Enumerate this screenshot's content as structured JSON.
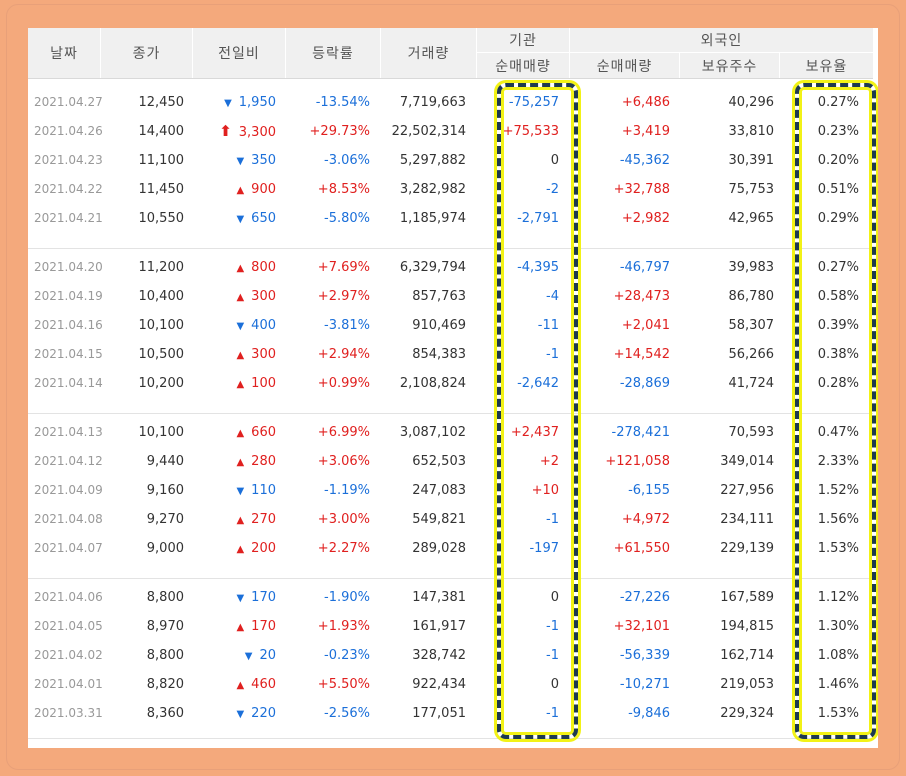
{
  "columns": {
    "date": "날짜",
    "close": "종가",
    "change": "전일비",
    "rate": "등락률",
    "volume": "거래량",
    "institution": "기관",
    "foreign": "외국인",
    "inst_net": "순매매량",
    "foreign_net": "순매매량",
    "foreign_holding": "보유주수",
    "foreign_ratio": "보유율"
  },
  "groups": [
    {
      "rows": [
        {
          "date": "2021.04.27",
          "close": "12,450",
          "dir": "down",
          "change": "1,950",
          "rate": "-13.54%",
          "volume": "7,719,663",
          "inst": "-75,257",
          "foreign_net": "+6,486",
          "holding": "40,296",
          "ratio": "0.27%"
        },
        {
          "date": "2021.04.26",
          "close": "14,400",
          "dir": "limit-up",
          "change": "3,300",
          "rate": "+29.73%",
          "volume": "22,502,314",
          "inst": "+75,533",
          "foreign_net": "+3,419",
          "holding": "33,810",
          "ratio": "0.23%"
        },
        {
          "date": "2021.04.23",
          "close": "11,100",
          "dir": "down",
          "change": "350",
          "rate": "-3.06%",
          "volume": "5,297,882",
          "inst": "0",
          "foreign_net": "-45,362",
          "holding": "30,391",
          "ratio": "0.20%"
        },
        {
          "date": "2021.04.22",
          "close": "11,450",
          "dir": "up",
          "change": "900",
          "rate": "+8.53%",
          "volume": "3,282,982",
          "inst": "-2",
          "foreign_net": "+32,788",
          "holding": "75,753",
          "ratio": "0.51%"
        },
        {
          "date": "2021.04.21",
          "close": "10,550",
          "dir": "down",
          "change": "650",
          "rate": "-5.80%",
          "volume": "1,185,974",
          "inst": "-2,791",
          "foreign_net": "+2,982",
          "holding": "42,965",
          "ratio": "0.29%"
        }
      ]
    },
    {
      "rows": [
        {
          "date": "2021.04.20",
          "close": "11,200",
          "dir": "up",
          "change": "800",
          "rate": "+7.69%",
          "volume": "6,329,794",
          "inst": "-4,395",
          "foreign_net": "-46,797",
          "holding": "39,983",
          "ratio": "0.27%"
        },
        {
          "date": "2021.04.19",
          "close": "10,400",
          "dir": "up",
          "change": "300",
          "rate": "+2.97%",
          "volume": "857,763",
          "inst": "-4",
          "foreign_net": "+28,473",
          "holding": "86,780",
          "ratio": "0.58%"
        },
        {
          "date": "2021.04.16",
          "close": "10,100",
          "dir": "down",
          "change": "400",
          "rate": "-3.81%",
          "volume": "910,469",
          "inst": "-11",
          "foreign_net": "+2,041",
          "holding": "58,307",
          "ratio": "0.39%"
        },
        {
          "date": "2021.04.15",
          "close": "10,500",
          "dir": "up",
          "change": "300",
          "rate": "+2.94%",
          "volume": "854,383",
          "inst": "-1",
          "foreign_net": "+14,542",
          "holding": "56,266",
          "ratio": "0.38%"
        },
        {
          "date": "2021.04.14",
          "close": "10,200",
          "dir": "up",
          "change": "100",
          "rate": "+0.99%",
          "volume": "2,108,824",
          "inst": "-2,642",
          "foreign_net": "-28,869",
          "holding": "41,724",
          "ratio": "0.28%"
        }
      ]
    },
    {
      "rows": [
        {
          "date": "2021.04.13",
          "close": "10,100",
          "dir": "up",
          "change": "660",
          "rate": "+6.99%",
          "volume": "3,087,102",
          "inst": "+2,437",
          "foreign_net": "-278,421",
          "holding": "70,593",
          "ratio": "0.47%"
        },
        {
          "date": "2021.04.12",
          "close": "9,440",
          "dir": "up",
          "change": "280",
          "rate": "+3.06%",
          "volume": "652,503",
          "inst": "+2",
          "foreign_net": "+121,058",
          "holding": "349,014",
          "ratio": "2.33%"
        },
        {
          "date": "2021.04.09",
          "close": "9,160",
          "dir": "down",
          "change": "110",
          "rate": "-1.19%",
          "volume": "247,083",
          "inst": "+10",
          "foreign_net": "-6,155",
          "holding": "227,956",
          "ratio": "1.52%"
        },
        {
          "date": "2021.04.08",
          "close": "9,270",
          "dir": "up",
          "change": "270",
          "rate": "+3.00%",
          "volume": "549,821",
          "inst": "-1",
          "foreign_net": "+4,972",
          "holding": "234,111",
          "ratio": "1.56%"
        },
        {
          "date": "2021.04.07",
          "close": "9,000",
          "dir": "up",
          "change": "200",
          "rate": "+2.27%",
          "volume": "289,028",
          "inst": "-197",
          "foreign_net": "+61,550",
          "holding": "229,139",
          "ratio": "1.53%"
        }
      ]
    },
    {
      "rows": [
        {
          "date": "2021.04.06",
          "close": "8,800",
          "dir": "down",
          "change": "170",
          "rate": "-1.90%",
          "volume": "147,381",
          "inst": "0",
          "foreign_net": "-27,226",
          "holding": "167,589",
          "ratio": "1.12%"
        },
        {
          "date": "2021.04.05",
          "close": "8,970",
          "dir": "up",
          "change": "170",
          "rate": "+1.93%",
          "volume": "161,917",
          "inst": "-1",
          "foreign_net": "+32,101",
          "holding": "194,815",
          "ratio": "1.30%"
        },
        {
          "date": "2021.04.02",
          "close": "8,800",
          "dir": "down",
          "change": "20",
          "rate": "-0.23%",
          "volume": "328,742",
          "inst": "-1",
          "foreign_net": "-56,339",
          "holding": "162,714",
          "ratio": "1.08%"
        },
        {
          "date": "2021.04.01",
          "close": "8,820",
          "dir": "up",
          "change": "460",
          "rate": "+5.50%",
          "volume": "922,434",
          "inst": "0",
          "foreign_net": "-10,271",
          "holding": "219,053",
          "ratio": "1.46%"
        },
        {
          "date": "2021.03.31",
          "close": "8,360",
          "dir": "down",
          "change": "220",
          "rate": "-2.56%",
          "volume": "177,051",
          "inst": "-1",
          "foreign_net": "-9,846",
          "holding": "229,324",
          "ratio": "1.53%"
        }
      ]
    }
  ],
  "colors": {
    "up": "#e0201f",
    "down": "#1b6fd9",
    "highlight_border": "#1e3a4f",
    "highlight_glow": "#f2f216",
    "frame": "#f4a97c"
  },
  "icons": {
    "up": "triangle-up-icon",
    "down": "triangle-down-icon",
    "limit-up": "limit-up-arrow-icon"
  }
}
